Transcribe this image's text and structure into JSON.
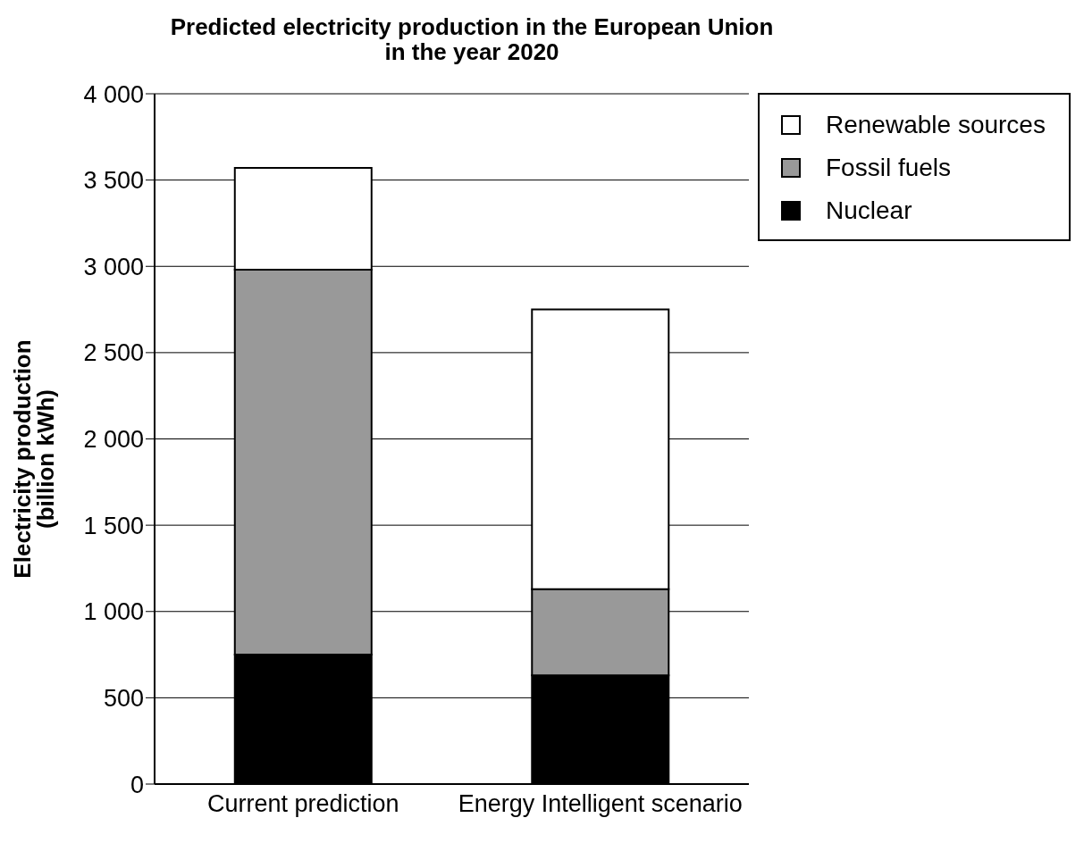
{
  "chart_data": {
    "type": "bar",
    "stacked": true,
    "title": "Predicted electricity production in the European Union\nin the year 2020",
    "ylabel": "Electricity production\n(billion kWh)",
    "categories": [
      "Current prediction",
      "Energy Intelligent scenario"
    ],
    "series": [
      {
        "name": "Nuclear",
        "color": "#000000",
        "values": [
          750,
          630
        ]
      },
      {
        "name": "Fossil fuels",
        "color": "#999999",
        "values": [
          2230,
          500
        ]
      },
      {
        "name": "Renewable sources",
        "color": "#ffffff",
        "values": [
          590,
          1620
        ]
      }
    ],
    "ylim": [
      0,
      4000
    ],
    "yticks": [
      0,
      500,
      {
        "value": 1000,
        "label": "1 000"
      },
      {
        "value": 1500,
        "label": "1 500"
      },
      {
        "value": 2000,
        "label": "2 000"
      },
      {
        "value": 2500,
        "label": "2 500"
      },
      {
        "value": 3000,
        "label": "3 000"
      },
      {
        "value": 3500,
        "label": "3 500"
      },
      {
        "value": 4000,
        "label": "4 000"
      }
    ],
    "grid": "y",
    "legend": "top right"
  }
}
